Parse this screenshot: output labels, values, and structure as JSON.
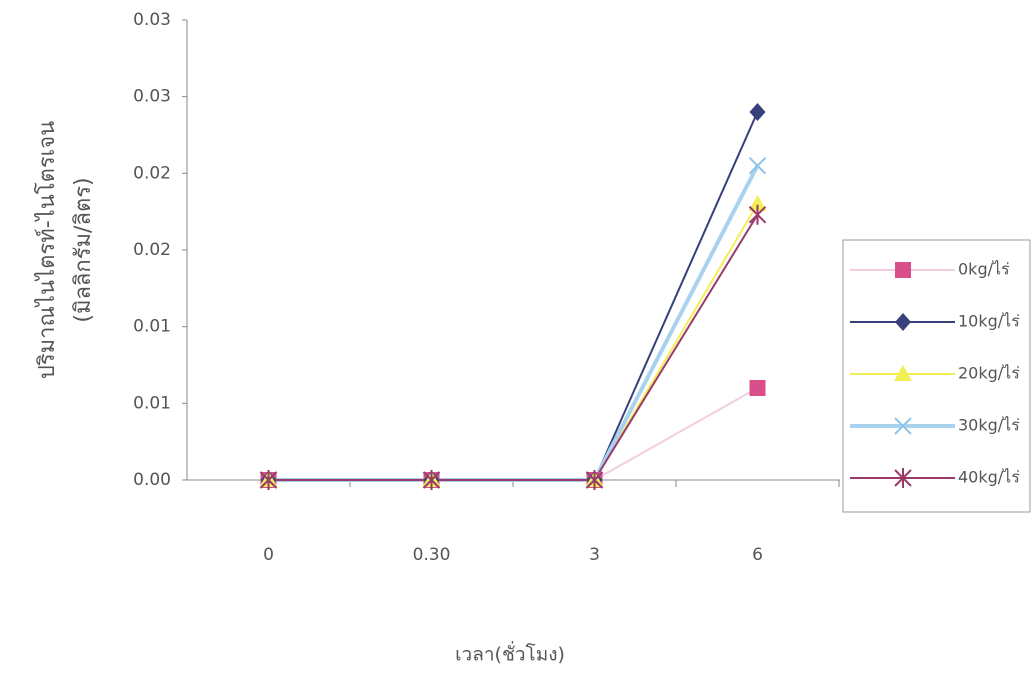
{
  "chart_data": {
    "type": "line",
    "y_label": [
      "ปริมาณไนไตรท์-ไนโตรเจน",
      "(มิลลิกรัม/ลิตร)"
    ],
    "x_label": "เวลา(ชั่วโมง)",
    "categories": [
      "0",
      "0.30",
      "3",
      "6"
    ],
    "series": [
      {
        "name": "0kg/ไร่",
        "color": "#d94f8a",
        "line_color": "#f2cde0",
        "marker": "square",
        "values": [
          0,
          0,
          0,
          0.006
        ]
      },
      {
        "name": "10kg/ไร่",
        "color": "#37407a",
        "line_color": "#37407a",
        "marker": "diamond",
        "values": [
          0,
          0,
          0,
          0.024
        ]
      },
      {
        "name": "20kg/ไร่",
        "color": "#f2ee55",
        "line_color": "#f2ee55",
        "marker": "triangle",
        "values": [
          0,
          0,
          0,
          0.018
        ]
      },
      {
        "name": "30kg/ไร่",
        "color": "#8fc3e8",
        "line_color": "#a9d2ee",
        "marker": "x",
        "values": [
          0,
          0,
          0,
          0.0205
        ]
      },
      {
        "name": "40kg/ไร่",
        "color": "#9a3a68",
        "line_color": "#9a3a68",
        "marker": "star",
        "values": [
          0,
          0,
          0,
          0.0173
        ]
      }
    ],
    "ylim": [
      0,
      0.03
    ],
    "yticks": [
      {
        "value": 0,
        "label": "0.00"
      },
      {
        "value": 0.005,
        "label": "0.01"
      },
      0.01,
      {
        "value": 0.015,
        "label": "0.02"
      },
      0.02,
      {
        "value": 0.025,
        "label": "0.03"
      },
      0.03
    ],
    "legend": "right"
  }
}
